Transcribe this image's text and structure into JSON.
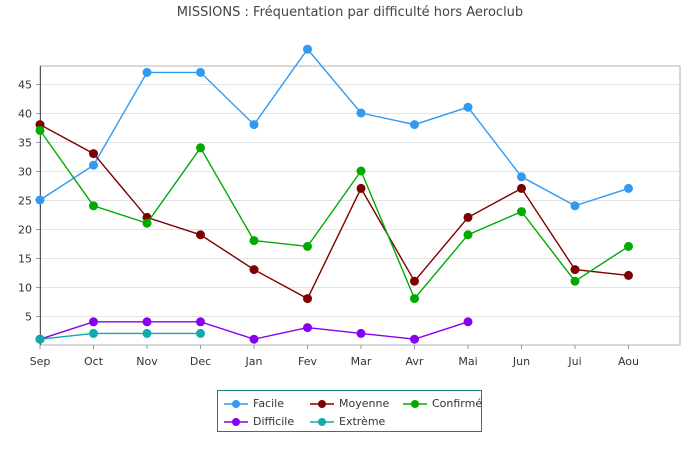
{
  "title": "MISSIONS : Fréquentation par difficulté hors Aeroclub",
  "chart_data": {
    "type": "line",
    "title": "MISSIONS : Fréquentation par difficulté hors Aeroclub",
    "xlabel": "",
    "ylabel": "",
    "categories": [
      "Sep",
      "Oct",
      "Nov",
      "Dec",
      "Jan",
      "Fev",
      "Mar",
      "Avr",
      "Mai",
      "Jun",
      "Jui",
      "Aou"
    ],
    "ylim": [
      0,
      48
    ],
    "yticks": [
      5,
      10,
      15,
      20,
      25,
      30,
      35,
      40,
      45
    ],
    "grid": true,
    "legend_position": "bottom",
    "series": [
      {
        "name": "Facile",
        "color": "#3399ee",
        "values": [
          25,
          31,
          47,
          47,
          38,
          51,
          40,
          38,
          41,
          29,
          24,
          27
        ]
      },
      {
        "name": "Moyenne",
        "color": "#7f0000",
        "values": [
          38,
          33,
          22,
          19,
          13,
          8,
          27,
          11,
          22,
          27,
          13,
          12
        ]
      },
      {
        "name": "Confirmé",
        "color": "#00aa00",
        "values": [
          37,
          24,
          21,
          34,
          18,
          17,
          30,
          8,
          19,
          23,
          11,
          17
        ]
      },
      {
        "name": "Difficile",
        "color": "#8800ee",
        "values": [
          1,
          4,
          4,
          4,
          1,
          3,
          2,
          1,
          4,
          null,
          null,
          null
        ]
      },
      {
        "name": "Extrème",
        "color": "#11aaaa",
        "values": [
          1,
          2,
          2,
          2,
          null,
          null,
          null,
          null,
          null,
          null,
          null,
          null
        ]
      }
    ]
  }
}
